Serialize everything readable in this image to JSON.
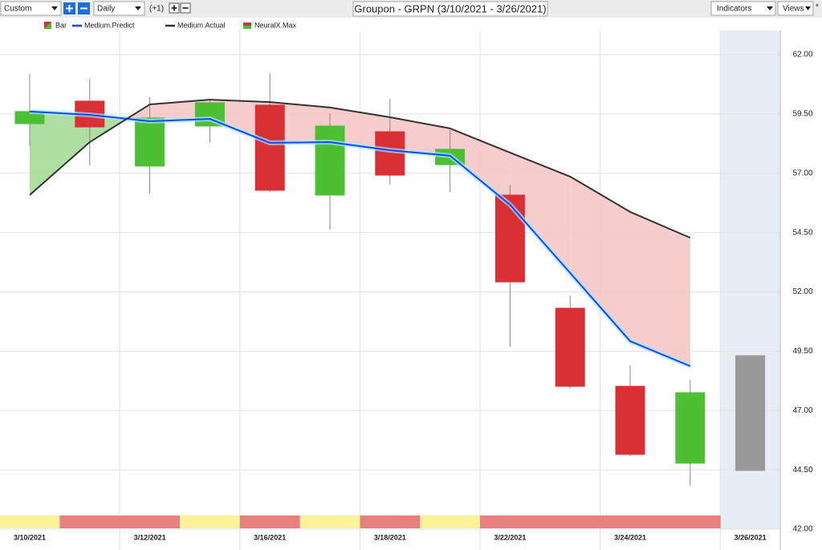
{
  "toolbar": {
    "interval_mode": "Custom",
    "period": "Daily",
    "offset": "(+1)",
    "indicators": "Indicators",
    "views": "Views"
  },
  "chart_data": {
    "type": "candlestick",
    "title": "Groupon - GRPN (3/10/2021 - 3/26/2021)",
    "categories": [
      "3/10/2021",
      null,
      "3/12/2021",
      null,
      "3/16/2021",
      null,
      "3/18/2021",
      null,
      "3/22/2021",
      null,
      "3/24/2021",
      null,
      "3/26/2021"
    ],
    "candles": {
      "name": "Bar",
      "open": [
        59.09,
        60.04,
        57.3,
        58.99,
        59.87,
        56.08,
        58.75,
        57.36,
        56.08,
        51.31,
        48.02,
        44.78,
        44.47
      ],
      "high": [
        61.19,
        60.98,
        60.21,
        60.1,
        61.22,
        59.53,
        60.14,
        58.82,
        56.52,
        51.85,
        48.9,
        48.29,
        null
      ],
      "low": [
        58.14,
        57.33,
        56.15,
        58.28,
        56.21,
        54.62,
        56.52,
        56.21,
        49.68,
        47.92,
        45.08,
        43.83,
        null
      ],
      "close": [
        59.6,
        58.95,
        59.33,
        59.97,
        56.28,
        58.99,
        56.92,
        58.01,
        52.42,
        48.02,
        45.15,
        47.75,
        49.31
      ],
      "colors": [
        "#4cbf33",
        "#d93035",
        "#4cbf33",
        "#4cbf33",
        "#d93035",
        "#4cbf33",
        "#d93035",
        "#4cbf33",
        "#d93035",
        "#d93035",
        "#d93035",
        "#4cbf33",
        "#999999"
      ]
    },
    "series": [
      {
        "name": "Medium.Predict",
        "color": "#1447ff",
        "values": [
          59.6,
          59.46,
          59.19,
          59.29,
          58.28,
          58.31,
          57.97,
          57.74,
          55.67,
          52.8,
          49.92,
          48.87,
          null
        ]
      },
      {
        "name": "Medium.Actual",
        "color": "#333333",
        "values": [
          56.08,
          58.31,
          59.9,
          60.1,
          60.0,
          59.77,
          59.36,
          58.89,
          57.87,
          56.86,
          55.37,
          54.28,
          null
        ]
      }
    ],
    "fill_colors": {
      "above": "#a6dc96",
      "below": "#f6c7c7"
    },
    "signal": {
      "name": "NeuralX.Max",
      "colors": [
        "#fbf29a",
        "#e88080",
        "#e88080",
        "#fbf29a",
        "#e88080",
        "#fbf29a",
        "#e88080",
        "#fbf29a",
        "#e88080",
        "#e88080",
        "#e88080",
        "#e88080",
        null
      ]
    },
    "ylim": [
      42,
      62
    ],
    "yticks": [
      {
        "value": 62,
        "label": "62.00"
      },
      {
        "value": 59.5,
        "label": "59.50"
      },
      {
        "value": 57,
        "label": "57.00"
      },
      {
        "value": 54.5,
        "label": "54.50"
      },
      {
        "value": 52,
        "label": "52.00"
      },
      {
        "value": 49.5,
        "label": "49.50"
      },
      {
        "value": 47,
        "label": "47.00"
      },
      {
        "value": 44.5,
        "label": "44.50"
      },
      {
        "value": 42,
        "label": "42.00"
      }
    ],
    "grid": true
  }
}
